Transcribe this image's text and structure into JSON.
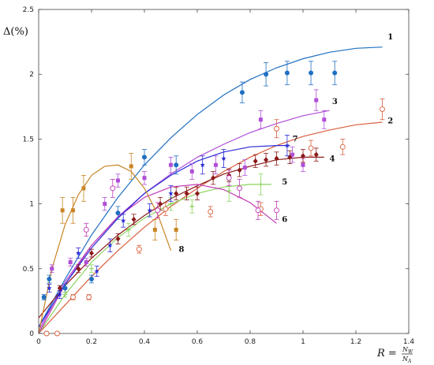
{
  "chart_data": {
    "type": "scatter",
    "title": "",
    "ylabel": "Δ(%)",
    "xlabel_text": "R =",
    "xlabel_num": "N",
    "xlabel_num_sub": "W",
    "xlabel_den": "N",
    "xlabel_den_sub": "A",
    "xlim": [
      0,
      1.4
    ],
    "ylim": [
      0,
      2.5
    ],
    "x_ticks": [
      "0",
      "0.2",
      "0.4",
      "0.6",
      "0.8",
      "1",
      "1.2",
      "1.4"
    ],
    "y_ticks": [
      "0",
      "0.5",
      "1",
      "1.5",
      "2",
      "2.5"
    ],
    "grid": false,
    "series": [
      {
        "label": "1",
        "color": "#1f6fc2",
        "marker": "circle-filled",
        "curve": [
          [
            0,
            0.05
          ],
          [
            0.1,
            0.42
          ],
          [
            0.2,
            0.76
          ],
          [
            0.3,
            1.05
          ],
          [
            0.4,
            1.3
          ],
          [
            0.5,
            1.51
          ],
          [
            0.6,
            1.69
          ],
          [
            0.7,
            1.84
          ],
          [
            0.8,
            1.96
          ],
          [
            0.9,
            2.05
          ],
          [
            1.0,
            2.12
          ],
          [
            1.1,
            2.17
          ],
          [
            1.2,
            2.2
          ],
          [
            1.3,
            2.21
          ]
        ],
        "points": [
          [
            0.02,
            0.28,
            0.02
          ],
          [
            0.04,
            0.42,
            0.03
          ],
          [
            0.1,
            0.35,
            0.03
          ],
          [
            0.2,
            0.42,
            0.03
          ],
          [
            0.3,
            0.93,
            0.05
          ],
          [
            0.4,
            1.36,
            0.06
          ],
          [
            0.52,
            1.3,
            0.07
          ],
          [
            0.77,
            1.86,
            0.08
          ],
          [
            0.86,
            2.0,
            0.09
          ],
          [
            0.94,
            2.01,
            0.09
          ],
          [
            1.03,
            2.01,
            0.09
          ],
          [
            1.12,
            2.01,
            0.09
          ]
        ],
        "label_at": [
          1.32,
          2.27
        ]
      },
      {
        "label": "2",
        "color": "#d95f3c",
        "marker": "circle-open",
        "curve": [
          [
            0,
            0.0
          ],
          [
            0.1,
            0.22
          ],
          [
            0.2,
            0.44
          ],
          [
            0.3,
            0.64
          ],
          [
            0.4,
            0.82
          ],
          [
            0.5,
            0.98
          ],
          [
            0.6,
            1.12
          ],
          [
            0.7,
            1.25
          ],
          [
            0.8,
            1.36
          ],
          [
            0.9,
            1.45
          ],
          [
            1.0,
            1.52
          ],
          [
            1.1,
            1.57
          ],
          [
            1.2,
            1.61
          ],
          [
            1.3,
            1.63
          ]
        ],
        "points": [
          [
            0.03,
            0.0,
            0.01
          ],
          [
            0.07,
            0.0,
            0.01
          ],
          [
            0.13,
            0.28,
            0.02
          ],
          [
            0.19,
            0.28,
            0.02
          ],
          [
            0.38,
            0.65,
            0.03
          ],
          [
            0.48,
            0.96,
            0.05
          ],
          [
            0.65,
            0.94,
            0.04
          ],
          [
            0.84,
            0.96,
            0.05
          ],
          [
            0.9,
            1.58,
            0.07
          ],
          [
            1.03,
            1.43,
            0.06
          ],
          [
            1.15,
            1.44,
            0.06
          ],
          [
            1.3,
            1.73,
            0.08
          ]
        ],
        "label_at": [
          1.32,
          1.62
        ]
      },
      {
        "label": "3",
        "color": "#b04fd8",
        "marker": "square-filled",
        "curve": [
          [
            0,
            0.02
          ],
          [
            0.1,
            0.4
          ],
          [
            0.2,
            0.68
          ],
          [
            0.3,
            0.9
          ],
          [
            0.4,
            1.08
          ],
          [
            0.5,
            1.23
          ],
          [
            0.6,
            1.36
          ],
          [
            0.7,
            1.46
          ],
          [
            0.8,
            1.55
          ],
          [
            0.9,
            1.62
          ],
          [
            1.0,
            1.68
          ],
          [
            1.1,
            1.72
          ]
        ],
        "points": [
          [
            0.05,
            0.5,
            0.03
          ],
          [
            0.12,
            0.55,
            0.03
          ],
          [
            0.18,
            0.55,
            0.03
          ],
          [
            0.25,
            1.0,
            0.05
          ],
          [
            0.3,
            1.18,
            0.05
          ],
          [
            0.4,
            1.2,
            0.05
          ],
          [
            0.5,
            1.3,
            0.06
          ],
          [
            0.58,
            1.25,
            0.06
          ],
          [
            0.67,
            1.3,
            0.07
          ],
          [
            0.78,
            1.28,
            0.06
          ],
          [
            0.84,
            1.65,
            0.07
          ],
          [
            0.96,
            1.38,
            0.06
          ],
          [
            1.0,
            1.3,
            0.05
          ],
          [
            1.05,
            1.8,
            0.08
          ],
          [
            1.08,
            1.65,
            0.07
          ]
        ],
        "label_at": [
          1.11,
          1.77
        ]
      },
      {
        "label": "4",
        "color": "#8b1a1a",
        "marker": "diamond-filled",
        "curve": [
          [
            0,
            0.12
          ],
          [
            0.1,
            0.37
          ],
          [
            0.2,
            0.58
          ],
          [
            0.3,
            0.76
          ],
          [
            0.4,
            0.91
          ],
          [
            0.5,
            1.04
          ],
          [
            0.6,
            1.14
          ],
          [
            0.7,
            1.23
          ],
          [
            0.8,
            1.29
          ],
          [
            0.9,
            1.34
          ],
          [
            1.0,
            1.36
          ],
          [
            1.08,
            1.36
          ]
        ],
        "points": [
          [
            0.08,
            0.35,
            0.02
          ],
          [
            0.15,
            0.5,
            0.03
          ],
          [
            0.2,
            0.62,
            0.03
          ],
          [
            0.3,
            0.73,
            0.04
          ],
          [
            0.36,
            0.88,
            0.04
          ],
          [
            0.46,
            1.0,
            0.05
          ],
          [
            0.52,
            1.08,
            0.05
          ],
          [
            0.56,
            1.08,
            0.05
          ],
          [
            0.6,
            1.08,
            0.05
          ],
          [
            0.66,
            1.2,
            0.05
          ],
          [
            0.72,
            1.22,
            0.05
          ],
          [
            0.76,
            1.26,
            0.05
          ],
          [
            0.82,
            1.33,
            0.05
          ],
          [
            0.86,
            1.34,
            0.05
          ],
          [
            0.9,
            1.35,
            0.05
          ],
          [
            0.95,
            1.36,
            0.05
          ],
          [
            1.0,
            1.37,
            0.05
          ],
          [
            1.05,
            1.38,
            0.05
          ]
        ],
        "label_at": [
          1.1,
          1.33
        ]
      },
      {
        "label": "5",
        "color": "#8dd35f",
        "marker": "plus",
        "curve": [
          [
            0,
            0.0
          ],
          [
            0.1,
            0.3
          ],
          [
            0.2,
            0.55
          ],
          [
            0.3,
            0.74
          ],
          [
            0.4,
            0.89
          ],
          [
            0.5,
            1.0
          ],
          [
            0.6,
            1.08
          ],
          [
            0.7,
            1.13
          ],
          [
            0.8,
            1.15
          ],
          [
            0.88,
            1.15
          ]
        ],
        "points": [
          [
            0.1,
            0.3,
            0.02
          ],
          [
            0.2,
            0.5,
            0.03
          ],
          [
            0.34,
            0.8,
            0.05
          ],
          [
            0.5,
            1.0,
            0.05
          ],
          [
            0.58,
            0.98,
            0.05
          ],
          [
            0.72,
            1.1,
            0.08
          ],
          [
            0.84,
            1.15,
            0.08
          ]
        ],
        "label_at": [
          0.92,
          1.15
        ]
      },
      {
        "label": "6",
        "color": "#c13bb8",
        "marker": "circle-open",
        "curve": [
          [
            0,
            0.0
          ],
          [
            0.1,
            0.38
          ],
          [
            0.2,
            0.68
          ],
          [
            0.3,
            0.9
          ],
          [
            0.4,
            1.05
          ],
          [
            0.5,
            1.13
          ],
          [
            0.6,
            1.15
          ],
          [
            0.7,
            1.11
          ],
          [
            0.8,
            1.01
          ],
          [
            0.9,
            0.85
          ]
        ],
        "points": [
          [
            0.18,
            0.8,
            0.05
          ],
          [
            0.28,
            1.12,
            0.07
          ],
          [
            0.45,
            0.95,
            0.06
          ],
          [
            0.72,
            1.2,
            0.06
          ],
          [
            0.76,
            1.12,
            0.07
          ],
          [
            0.83,
            0.95,
            0.07
          ],
          [
            0.9,
            0.95,
            0.07
          ]
        ],
        "label_at": [
          0.92,
          0.86
        ]
      },
      {
        "label": "7",
        "color": "#2b2bd6",
        "marker": "star",
        "curve": [
          [
            0,
            0.05
          ],
          [
            0.1,
            0.38
          ],
          [
            0.2,
            0.66
          ],
          [
            0.3,
            0.89
          ],
          [
            0.4,
            1.08
          ],
          [
            0.5,
            1.22
          ],
          [
            0.6,
            1.33
          ],
          [
            0.7,
            1.4
          ],
          [
            0.8,
            1.44
          ],
          [
            0.9,
            1.45
          ],
          [
            0.95,
            1.45
          ]
        ],
        "points": [
          [
            0.04,
            0.35,
            0.03
          ],
          [
            0.08,
            0.3,
            0.03
          ],
          [
            0.15,
            0.62,
            0.04
          ],
          [
            0.22,
            0.48,
            0.04
          ],
          [
            0.27,
            0.68,
            0.05
          ],
          [
            0.32,
            0.87,
            0.05
          ],
          [
            0.42,
            0.95,
            0.05
          ],
          [
            0.5,
            1.08,
            0.06
          ],
          [
            0.62,
            1.3,
            0.07
          ],
          [
            0.7,
            1.35,
            0.07
          ],
          [
            0.94,
            1.45,
            0.08
          ]
        ],
        "label_at": [
          0.96,
          1.48
        ]
      },
      {
        "label": "8",
        "color": "#c98525",
        "marker": "square-filled",
        "curve": [
          [
            0,
            0.0
          ],
          [
            0.05,
            0.5
          ],
          [
            0.1,
            0.84
          ],
          [
            0.15,
            1.07
          ],
          [
            0.2,
            1.22
          ],
          [
            0.25,
            1.29
          ],
          [
            0.3,
            1.3
          ],
          [
            0.35,
            1.25
          ],
          [
            0.4,
            1.12
          ],
          [
            0.45,
            0.92
          ],
          [
            0.5,
            0.64
          ]
        ],
        "points": [
          [
            0.09,
            0.95,
            0.1
          ],
          [
            0.13,
            0.95,
            0.1
          ],
          [
            0.17,
            1.12,
            0.1
          ],
          [
            0.35,
            1.29,
            0.1
          ],
          [
            0.44,
            0.8,
            0.08
          ],
          [
            0.52,
            0.8,
            0.08
          ]
        ],
        "label_at": [
          0.53,
          0.63
        ]
      }
    ]
  }
}
